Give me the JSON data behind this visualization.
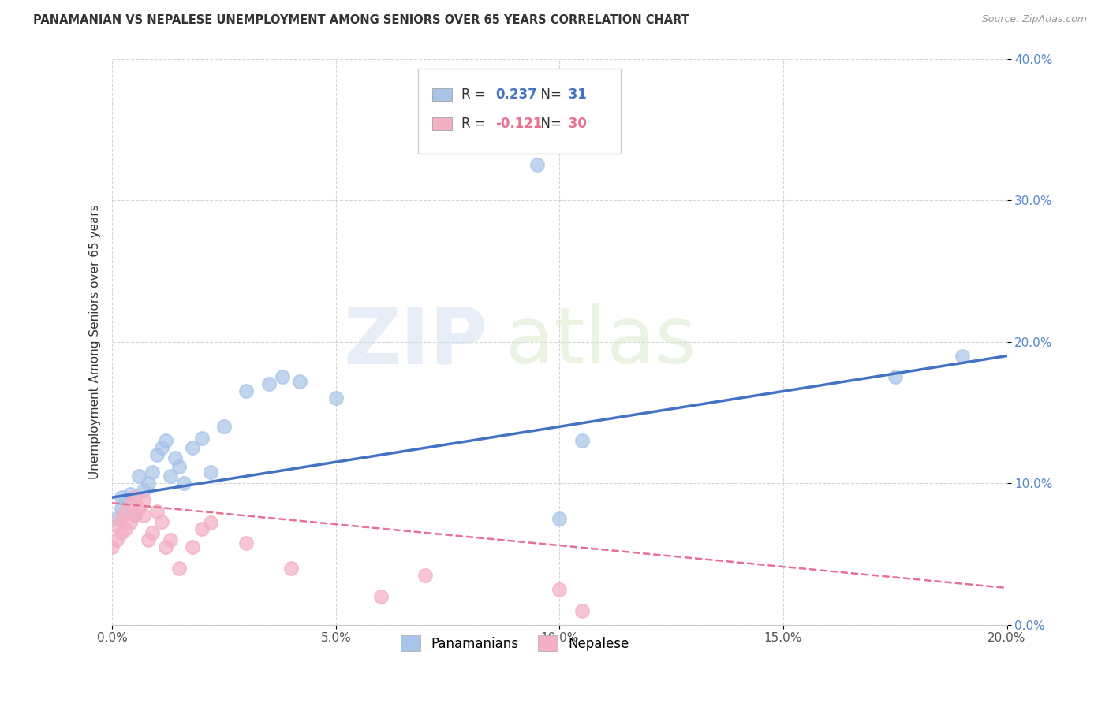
{
  "title": "PANAMANIAN VS NEPALESE UNEMPLOYMENT AMONG SENIORS OVER 65 YEARS CORRELATION CHART",
  "source": "Source: ZipAtlas.com",
  "ylabel": "Unemployment Among Seniors over 65 years",
  "xlim": [
    0.0,
    0.2
  ],
  "ylim": [
    0.0,
    0.4
  ],
  "legend_labels": [
    "Panamanians",
    "Nepalese"
  ],
  "r_pan": 0.237,
  "n_pan": 31,
  "r_nep": -0.121,
  "n_nep": 30,
  "blue_dot_color": "#a8c4e8",
  "pink_dot_color": "#f4afc4",
  "blue_line_color": "#4472c4",
  "pink_line_color": "#e87090",
  "watermark_zip": "ZIP",
  "watermark_atlas": "atlas",
  "pan_x": [
    0.001,
    0.002,
    0.002,
    0.003,
    0.004,
    0.005,
    0.006,
    0.007,
    0.008,
    0.009,
    0.01,
    0.011,
    0.012,
    0.013,
    0.014,
    0.015,
    0.016,
    0.018,
    0.02,
    0.022,
    0.025,
    0.03,
    0.035,
    0.038,
    0.042,
    0.05,
    0.095,
    0.1,
    0.105,
    0.175,
    0.19
  ],
  "pan_y": [
    0.075,
    0.082,
    0.09,
    0.088,
    0.092,
    0.078,
    0.105,
    0.095,
    0.1,
    0.108,
    0.12,
    0.125,
    0.13,
    0.105,
    0.118,
    0.112,
    0.1,
    0.125,
    0.132,
    0.108,
    0.14,
    0.165,
    0.17,
    0.175,
    0.172,
    0.16,
    0.325,
    0.075,
    0.13,
    0.175,
    0.19
  ],
  "nep_x": [
    0.0,
    0.001,
    0.001,
    0.002,
    0.002,
    0.003,
    0.003,
    0.004,
    0.004,
    0.005,
    0.005,
    0.006,
    0.007,
    0.007,
    0.008,
    0.009,
    0.01,
    0.011,
    0.012,
    0.013,
    0.015,
    0.018,
    0.02,
    0.022,
    0.03,
    0.04,
    0.06,
    0.07,
    0.1,
    0.105
  ],
  "nep_y": [
    0.055,
    0.06,
    0.07,
    0.065,
    0.075,
    0.068,
    0.08,
    0.072,
    0.085,
    0.078,
    0.09,
    0.082,
    0.077,
    0.088,
    0.06,
    0.065,
    0.08,
    0.073,
    0.055,
    0.06,
    0.04,
    0.055,
    0.068,
    0.072,
    0.058,
    0.04,
    0.02,
    0.035,
    0.025,
    0.01
  ]
}
